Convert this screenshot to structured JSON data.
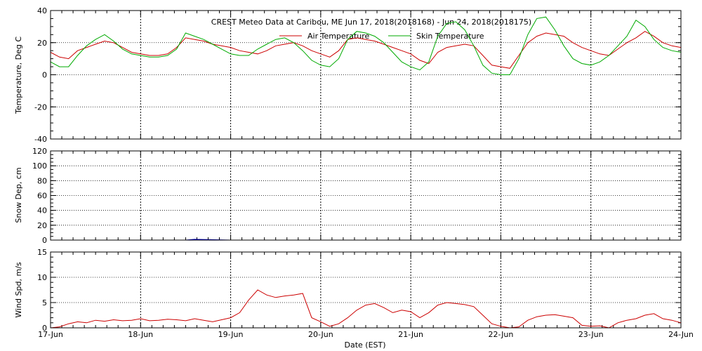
{
  "chart_data": [
    {
      "type": "line",
      "title": "CREST Meteo Data at Caribou, ME   Jun 17, 2018(2018168) - Jun 24, 2018(2018175)",
      "ylabel": "Temperature, Deg C",
      "ylim": [
        -40,
        40
      ],
      "yticks": [
        -40,
        -20,
        0,
        20,
        40
      ],
      "xlim": [
        "2018-06-17",
        "2018-06-24"
      ],
      "grid": true,
      "legend_position": "top-center",
      "series": [
        {
          "name": "Air Temperature",
          "color": "#cc0000",
          "x": [
            17.0,
            17.1,
            17.2,
            17.3,
            17.4,
            17.5,
            17.6,
            17.7,
            17.8,
            17.9,
            18.0,
            18.1,
            18.2,
            18.3,
            18.4,
            18.5,
            18.6,
            18.7,
            18.8,
            18.9,
            19.0,
            19.1,
            19.2,
            19.3,
            19.4,
            19.5,
            19.6,
            19.7,
            19.8,
            19.9,
            20.0,
            20.1,
            20.2,
            20.3,
            20.4,
            20.5,
            20.6,
            20.7,
            20.8,
            20.9,
            21.0,
            21.1,
            21.2,
            21.3,
            21.4,
            21.5,
            21.6,
            21.7,
            21.8,
            21.9,
            22.0,
            22.1,
            22.2,
            22.3,
            22.4,
            22.5,
            22.6,
            22.7,
            22.8,
            22.9,
            23.0,
            23.1,
            23.2,
            23.3,
            23.4,
            23.5,
            23.6,
            23.7,
            23.8,
            23.9,
            24.0
          ],
          "y": [
            14,
            11,
            10,
            15,
            17,
            19,
            21,
            20,
            17,
            14,
            13,
            12,
            12,
            13,
            17,
            23,
            22,
            21,
            19,
            18,
            17,
            15,
            14,
            13,
            15,
            18,
            19,
            20,
            18,
            15,
            13,
            11,
            15,
            22,
            23,
            22,
            21,
            19,
            17,
            15,
            13,
            9,
            7,
            14,
            17,
            18,
            19,
            18,
            12,
            6,
            5,
            4,
            12,
            20,
            24,
            26,
            25,
            24,
            20,
            17,
            15,
            13,
            12,
            16,
            20,
            23,
            27,
            24,
            20,
            18,
            17
          ]
        },
        {
          "name": "Skin Temperature",
          "color": "#00aa00",
          "x": [
            17.0,
            17.1,
            17.2,
            17.3,
            17.4,
            17.5,
            17.6,
            17.7,
            17.8,
            17.9,
            18.0,
            18.1,
            18.2,
            18.3,
            18.4,
            18.5,
            18.6,
            18.7,
            18.8,
            18.9,
            19.0,
            19.1,
            19.2,
            19.3,
            19.4,
            19.5,
            19.6,
            19.7,
            19.8,
            19.9,
            20.0,
            20.1,
            20.2,
            20.3,
            20.4,
            20.5,
            20.6,
            20.7,
            20.8,
            20.9,
            21.0,
            21.1,
            21.2,
            21.3,
            21.4,
            21.5,
            21.6,
            21.7,
            21.8,
            21.9,
            22.0,
            22.1,
            22.2,
            22.3,
            22.4,
            22.5,
            22.6,
            22.7,
            22.8,
            22.9,
            23.0,
            23.1,
            23.2,
            23.3,
            23.4,
            23.5,
            23.6,
            23.7,
            23.8,
            23.9,
            24.0
          ],
          "y": [
            8,
            5,
            5,
            12,
            18,
            22,
            25,
            21,
            16,
            13,
            12,
            11,
            11,
            12,
            16,
            26,
            24,
            22,
            19,
            16,
            13,
            12,
            12,
            16,
            19,
            22,
            23,
            20,
            15,
            9,
            6,
            5,
            10,
            22,
            27,
            26,
            24,
            20,
            14,
            8,
            5,
            3,
            8,
            24,
            32,
            33,
            28,
            18,
            6,
            1,
            0,
            0,
            10,
            25,
            35,
            36,
            28,
            18,
            10,
            7,
            6,
            8,
            12,
            18,
            24,
            34,
            30,
            22,
            17,
            15,
            14
          ]
        }
      ]
    },
    {
      "type": "line",
      "ylabel": "Snow Dep, cm",
      "ylim": [
        0,
        120
      ],
      "yticks": [
        0,
        20,
        40,
        60,
        80,
        100,
        120
      ],
      "grid": true,
      "series": [
        {
          "color": "#0000cc",
          "x": [
            17.0,
            17.5,
            18.0,
            18.5,
            18.6,
            19.0,
            19.5,
            20.0,
            21.0,
            22.0,
            23.0,
            24.0
          ],
          "y": [
            0,
            0,
            0,
            0,
            1,
            0,
            0,
            0,
            0,
            0,
            0,
            0
          ]
        }
      ]
    },
    {
      "type": "line",
      "ylabel": "Wind Spd, m/s",
      "xlabel": "Date (EST)",
      "ylim": [
        0,
        15
      ],
      "yticks": [
        0,
        5,
        10,
        15
      ],
      "xticks": [
        "17-Jun",
        "18-Jun",
        "19-Jun",
        "20-Jun",
        "21-Jun",
        "22-Jun",
        "23-Jun",
        "24-Jun"
      ],
      "grid": true,
      "series": [
        {
          "color": "#cc0000",
          "x": [
            17.0,
            17.1,
            17.2,
            17.3,
            17.4,
            17.5,
            17.6,
            17.7,
            17.8,
            17.9,
            18.0,
            18.1,
            18.2,
            18.3,
            18.4,
            18.5,
            18.6,
            18.7,
            18.8,
            18.9,
            19.0,
            19.1,
            19.2,
            19.3,
            19.4,
            19.5,
            19.6,
            19.7,
            19.8,
            19.9,
            20.0,
            20.1,
            20.2,
            20.3,
            20.4,
            20.5,
            20.6,
            20.7,
            20.8,
            20.9,
            21.0,
            21.1,
            21.2,
            21.3,
            21.4,
            21.5,
            21.6,
            21.7,
            21.8,
            21.9,
            22.0,
            22.1,
            22.2,
            22.3,
            22.4,
            22.5,
            22.6,
            22.7,
            22.8,
            22.9,
            23.0,
            23.1,
            23.2,
            23.3,
            23.4,
            23.5,
            23.6,
            23.7,
            23.8,
            23.9,
            24.0
          ],
          "y": [
            0,
            0.2,
            0.8,
            1.2,
            1.0,
            1.5,
            1.3,
            1.6,
            1.4,
            1.5,
            1.8,
            1.4,
            1.5,
            1.7,
            1.6,
            1.4,
            1.8,
            1.5,
            1.2,
            1.6,
            2.0,
            3.0,
            5.5,
            7.5,
            6.5,
            6.0,
            6.3,
            6.5,
            6.8,
            2.0,
            1.2,
            0.3,
            0.8,
            2.0,
            3.5,
            4.5,
            4.8,
            4.0,
            3.0,
            3.5,
            3.2,
            2.0,
            3.0,
            4.5,
            5.0,
            4.8,
            4.6,
            4.2,
            2.5,
            0.8,
            0.3,
            0,
            0.2,
            1.5,
            2.2,
            2.5,
            2.6,
            2.3,
            2.0,
            0.5,
            0.3,
            0.4,
            0,
            1.0,
            1.5,
            1.8,
            2.5,
            2.8,
            1.8,
            1.5,
            1.0
          ]
        }
      ]
    }
  ]
}
